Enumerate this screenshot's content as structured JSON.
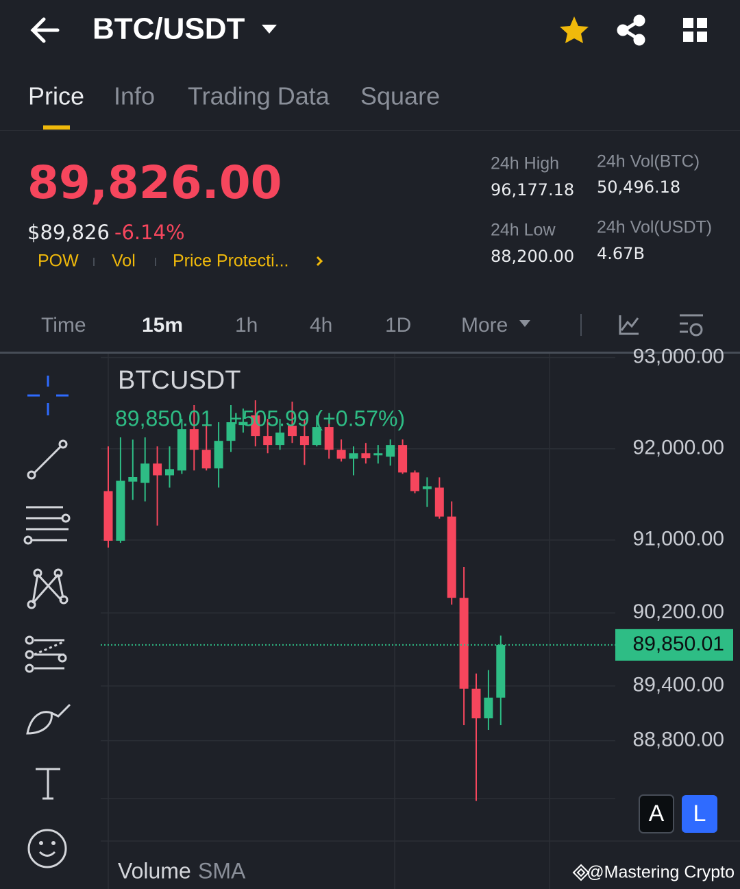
{
  "header": {
    "back_icon": "←",
    "pair": "BTC/USDT"
  },
  "tabs": [
    "Price",
    "Info",
    "Trading Data",
    "Square"
  ],
  "ticker": {
    "price": "89,826.00",
    "fiat_price": "$89,826",
    "change": "-6.14%",
    "tags": [
      "POW",
      "Vol",
      "Price Protecti..."
    ]
  },
  "stats": [
    {
      "label": "24h High",
      "value": "96,177.18"
    },
    {
      "label": "24h Vol(BTC)",
      "value": "50,496.18"
    },
    {
      "label": "24h Low",
      "value": "88,200.00"
    },
    {
      "label": "24h Vol(USDT)",
      "value": "4.67B"
    }
  ],
  "intervals": [
    "Time",
    "15m",
    "1h",
    "4h",
    "1D",
    "More"
  ],
  "chart_data": {
    "type": "candlestick",
    "title": "BTCUSDT",
    "legend": {
      "close": "89,850.01",
      "change": "+505.99 (+0.57%)"
    },
    "up_color": "#2ebd85",
    "down_color": "#f6465d",
    "open": [
      91536,
      90992,
      91640,
      91626,
      91838,
      91709,
      91762,
      92215,
      91989,
      91785,
      92087,
      92260,
      92366,
      92140,
      92042,
      92253,
      92140,
      92042,
      92238,
      91989,
      91891,
      91951,
      91928,
      91913,
      92042,
      91740,
      91558,
      91574,
      91257,
      90366,
      89370,
      89045,
      89272
    ],
    "high": [
      92026,
      92125,
      92100,
      92125,
      92026,
      92026,
      92328,
      92479,
      92253,
      92291,
      92479,
      92441,
      92532,
      92328,
      92328,
      92517,
      92328,
      92366,
      92313,
      92102,
      92026,
      92064,
      92042,
      92102,
      92102,
      91762,
      91687,
      91687,
      91423,
      90706,
      89536,
      89574,
      89951
    ],
    "low": [
      90917,
      90970,
      91440,
      91423,
      91158,
      91574,
      91725,
      91762,
      91762,
      91574,
      91966,
      92177,
      92026,
      91951,
      91989,
      92064,
      91823,
      92026,
      91891,
      91860,
      91709,
      91838,
      91838,
      91815,
      91725,
      91513,
      91362,
      91234,
      90291,
      88970,
      88140,
      88917,
      88970
    ],
    "close": [
      90992,
      91649,
      91690,
      91838,
      91709,
      91777,
      92215,
      91989,
      91785,
      92087,
      92291,
      92294,
      92140,
      92042,
      92177,
      92140,
      92042,
      92238,
      91989,
      91891,
      91951,
      91898,
      91951,
      92042,
      91740,
      91536,
      91589,
      91257,
      90366,
      89370,
      89045,
      89272,
      89850.01
    ],
    "ylim": [
      87700,
      93050
    ],
    "yticks": [
      {
        "value": 93000,
        "label": "93,000.00"
      },
      {
        "value": 92000,
        "label": "92,000.00"
      },
      {
        "value": 91000,
        "label": "91,000.00"
      },
      {
        "value": 90200,
        "label": "90,200.00"
      },
      {
        "value": 89400,
        "label": "89,400.00"
      },
      {
        "value": 88800,
        "label": "88,800.00"
      }
    ],
    "grid": true,
    "last_price": {
      "value": 89850.01,
      "label": "89,850.01"
    },
    "volume_title": "Volume",
    "volume_indicator": "SMA"
  },
  "scale_buttons": [
    "A",
    "L"
  ],
  "watermark": "@Mastering Crypto"
}
